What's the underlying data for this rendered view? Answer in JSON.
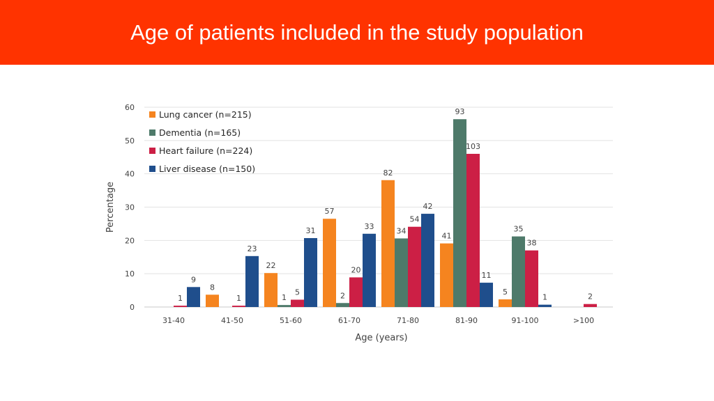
{
  "header": {
    "title": "Age of patients included in the study population",
    "background": "#ff3300"
  },
  "chart_data": {
    "type": "bar",
    "title": "",
    "xlabel": "Age (years)",
    "ylabel": "Percentage",
    "ylim": [
      0,
      60
    ],
    "yticks": [
      0,
      10,
      20,
      30,
      40,
      50,
      60
    ],
    "grid": true,
    "legend_position": "top-left",
    "categories": [
      "31-40",
      "41-50",
      "51-60",
      "61-70",
      "71-80",
      "81-90",
      "91-100",
      ">100"
    ],
    "series": [
      {
        "name": "Lung cancer (n=215)",
        "color": "#f5841f",
        "values": [
          0,
          3.7,
          10.2,
          26.5,
          38.1,
          19.1,
          2.3,
          0
        ],
        "labels": [
          "",
          "8",
          "22",
          "57",
          "82",
          "41",
          "5",
          ""
        ]
      },
      {
        "name": "Dementia (n=165)",
        "color": "#4e7a6a",
        "values": [
          0,
          0,
          0.6,
          1.2,
          20.6,
          56.4,
          21.2,
          0
        ],
        "labels": [
          "",
          "",
          "1",
          "2",
          "34",
          "93",
          "35",
          ""
        ]
      },
      {
        "name": "Heart failure  (n=224)",
        "color": "#cc1f45",
        "values": [
          0.4,
          0.4,
          2.2,
          8.9,
          24.1,
          46.0,
          17.0,
          0.9
        ],
        "labels": [
          "1",
          "1",
          "5",
          "20",
          "54",
          "103",
          "38",
          "2"
        ]
      },
      {
        "name": "Liver disease (n=150)",
        "color": "#1f4e8c",
        "values": [
          6.0,
          15.3,
          20.7,
          22.0,
          28.0,
          7.3,
          0.7,
          0
        ],
        "labels": [
          "9",
          "23",
          "31",
          "33",
          "42",
          "11",
          "1",
          ""
        ]
      }
    ]
  }
}
